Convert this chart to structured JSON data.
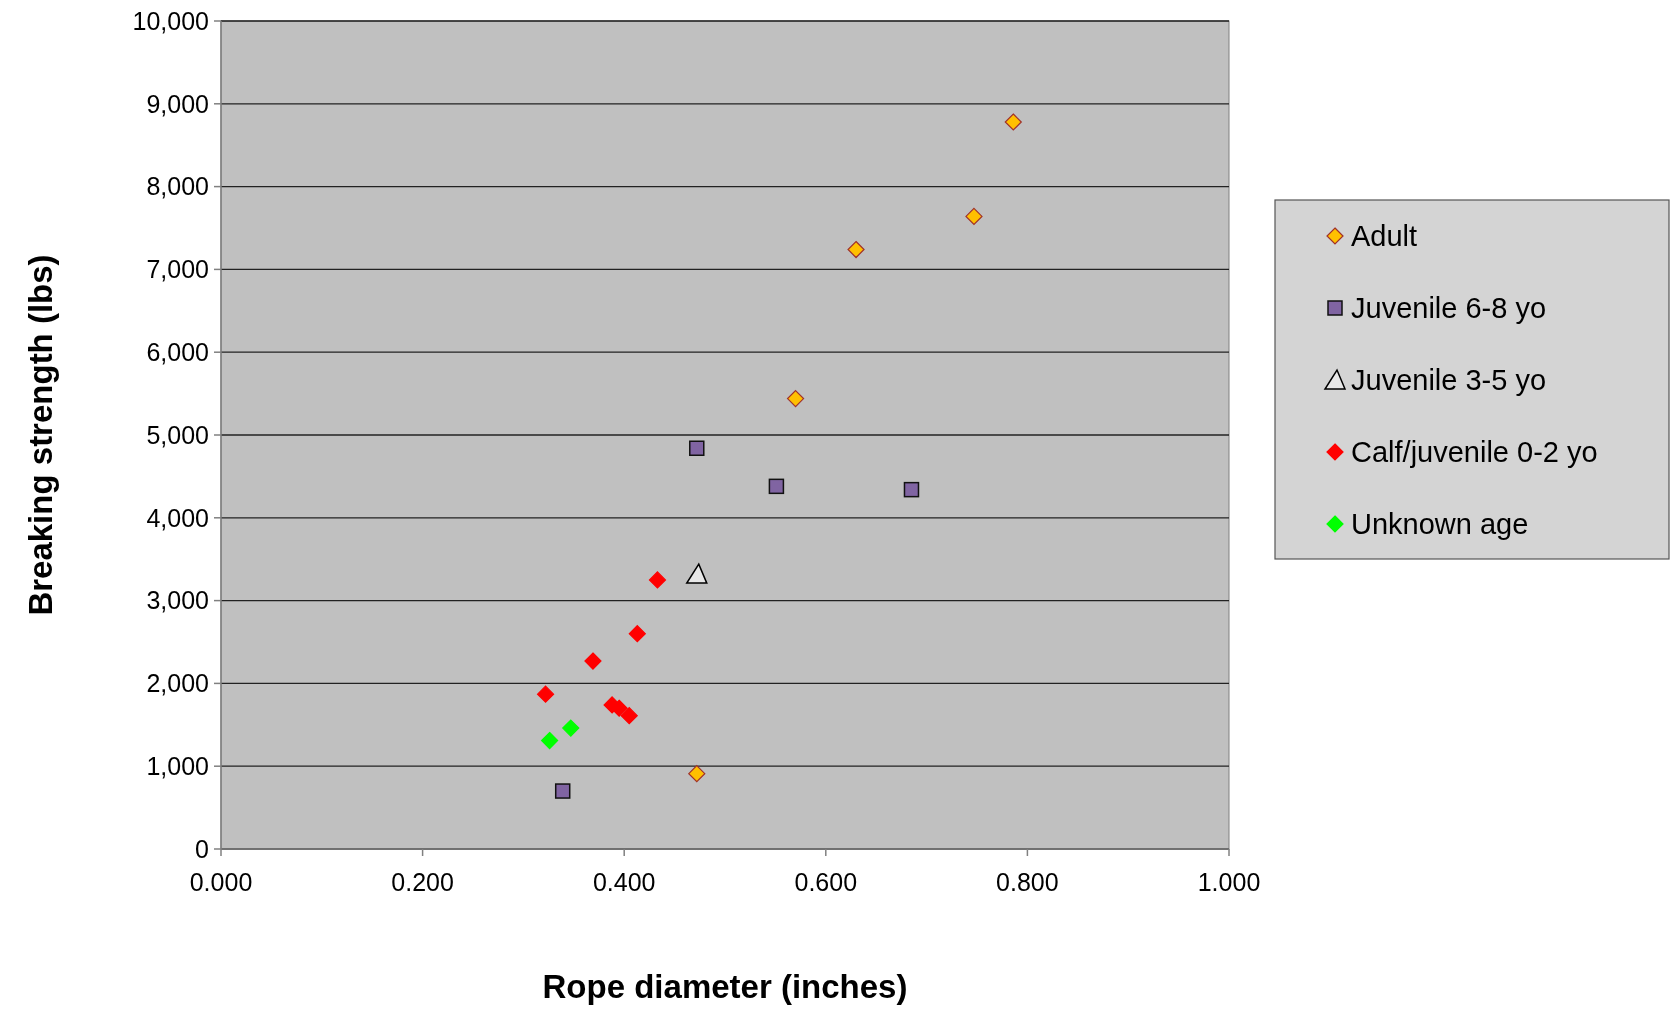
{
  "chart_data": {
    "type": "scatter",
    "xlabel": "Rope diameter (inches)",
    "ylabel": "Breaking strength (lbs)",
    "xlim": [
      0,
      1
    ],
    "xticks": [
      {
        "value": 0,
        "label": "0.000"
      },
      {
        "value": 0.2,
        "label": "0.200"
      },
      {
        "value": 0.4,
        "label": "0.400"
      },
      {
        "value": 0.6,
        "label": "0.600"
      },
      {
        "value": 0.8,
        "label": "0.800"
      },
      {
        "value": 1,
        "label": "1.000"
      }
    ],
    "ylim": [
      0,
      10000
    ],
    "yticks": [
      {
        "value": 0,
        "label": "0"
      },
      {
        "value": 1000,
        "label": "1,000"
      },
      {
        "value": 2000,
        "label": "2,000"
      },
      {
        "value": 3000,
        "label": "3,000"
      },
      {
        "value": 4000,
        "label": "4,000"
      },
      {
        "value": 5000,
        "label": "5,000"
      },
      {
        "value": 6000,
        "label": "6,000"
      },
      {
        "value": 7000,
        "label": "7,000"
      },
      {
        "value": 8000,
        "label": "8,000"
      },
      {
        "value": 9000,
        "label": "9,000"
      },
      {
        "value": 10000,
        "label": "10,000"
      }
    ],
    "grid": "y",
    "legend": "right",
    "series": [
      {
        "name": "Adult",
        "color": "#ffc000",
        "marker": "diamond",
        "x": [
          0.786,
          0.747,
          0.63,
          0.57,
          0.472
        ],
        "values": [
          8780,
          7640,
          7240,
          5440,
          910
        ]
      },
      {
        "name": "Juvenile 6-8 yo",
        "color": "#8064a2",
        "marker": "square",
        "x": [
          0.472,
          0.551,
          0.685,
          0.339
        ],
        "values": [
          4840,
          4380,
          4340,
          700
        ]
      },
      {
        "name": "Juvenile 3-5 yo",
        "color": "#e8e8e8",
        "marker": "triangle",
        "x": [
          0.472
        ],
        "values": [
          3320
        ]
      },
      {
        "name": "Calf/juvenile 0-2 yo",
        "color": "#ff0000",
        "marker": "diamond",
        "x": [
          0.433,
          0.413,
          0.369,
          0.322,
          0.388,
          0.395,
          0.405
        ],
        "values": [
          3250,
          2600,
          2270,
          1870,
          1740,
          1700,
          1610
        ]
      },
      {
        "name": "Unknown age",
        "color": "#00ff00",
        "marker": "diamond",
        "x": [
          0.326,
          0.347
        ],
        "values": [
          1310,
          1460
        ]
      }
    ]
  }
}
